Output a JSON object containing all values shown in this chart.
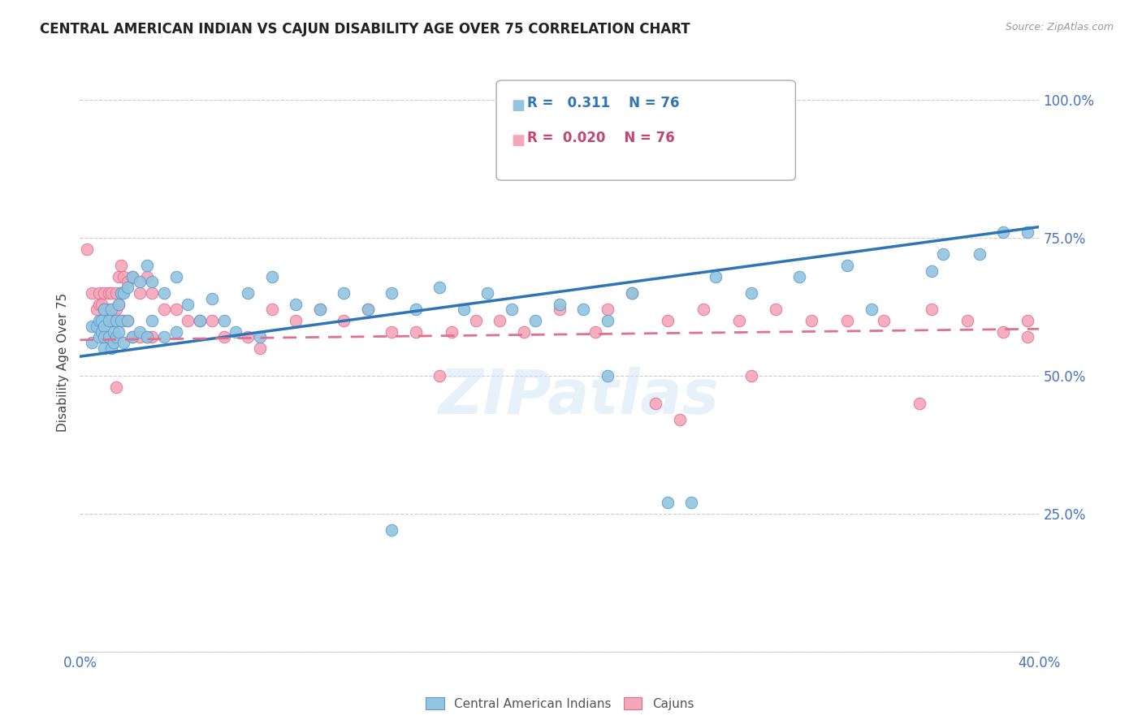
{
  "title": "CENTRAL AMERICAN INDIAN VS CAJUN DISABILITY AGE OVER 75 CORRELATION CHART",
  "source": "Source: ZipAtlas.com",
  "ylabel": "Disability Age Over 75",
  "R1": "0.311",
  "N1": "76",
  "R2": "0.020",
  "N2": "76",
  "color_blue": "#92c5de",
  "color_blue_edge": "#5b9bd5",
  "color_pink": "#f4a7b9",
  "color_pink_edge": "#e07090",
  "color_line_blue": "#2e75b6",
  "color_line_pink": "#e07090",
  "legend1_label": "Central American Indians",
  "legend2_label": "Cajuns",
  "watermark": "ZIPatlas",
  "xlim": [
    0.0,
    0.4
  ],
  "ylim": [
    0.0,
    1.05
  ],
  "ytick_values": [
    0.0,
    0.25,
    0.5,
    0.75,
    1.0
  ],
  "ytick_labels": [
    "",
    "25.0%",
    "50.0%",
    "75.0%",
    "100.0%"
  ],
  "blue_line_x0": 0.0,
  "blue_line_y0": 0.535,
  "blue_line_x1": 0.4,
  "blue_line_y1": 0.77,
  "pink_line_x0": 0.0,
  "pink_line_y0": 0.565,
  "pink_line_x1": 0.4,
  "pink_line_y1": 0.585,
  "blue_dots_x": [
    0.005,
    0.005,
    0.007,
    0.008,
    0.008,
    0.009,
    0.009,
    0.01,
    0.01,
    0.01,
    0.01,
    0.012,
    0.012,
    0.013,
    0.013,
    0.014,
    0.014,
    0.015,
    0.015,
    0.016,
    0.016,
    0.017,
    0.017,
    0.018,
    0.018,
    0.02,
    0.02,
    0.022,
    0.022,
    0.025,
    0.025,
    0.028,
    0.028,
    0.03,
    0.03,
    0.035,
    0.035,
    0.04,
    0.04,
    0.045,
    0.05,
    0.055,
    0.06,
    0.065,
    0.07,
    0.075,
    0.08,
    0.09,
    0.1,
    0.11,
    0.12,
    0.13,
    0.14,
    0.15,
    0.16,
    0.17,
    0.18,
    0.19,
    0.2,
    0.21,
    0.22,
    0.23,
    0.245,
    0.255,
    0.265,
    0.28,
    0.3,
    0.32,
    0.33,
    0.355,
    0.36,
    0.375,
    0.385,
    0.395,
    0.22,
    0.13
  ],
  "blue_dots_y": [
    0.56,
    0.59,
    0.59,
    0.6,
    0.57,
    0.6,
    0.58,
    0.62,
    0.59,
    0.57,
    0.55,
    0.6,
    0.57,
    0.62,
    0.55,
    0.58,
    0.56,
    0.6,
    0.57,
    0.63,
    0.58,
    0.65,
    0.6,
    0.65,
    0.56,
    0.66,
    0.6,
    0.68,
    0.57,
    0.67,
    0.58,
    0.7,
    0.57,
    0.67,
    0.6,
    0.65,
    0.57,
    0.68,
    0.58,
    0.63,
    0.6,
    0.64,
    0.6,
    0.58,
    0.65,
    0.57,
    0.68,
    0.63,
    0.62,
    0.65,
    0.62,
    0.65,
    0.62,
    0.66,
    0.62,
    0.65,
    0.62,
    0.6,
    0.63,
    0.62,
    0.6,
    0.65,
    0.27,
    0.27,
    0.68,
    0.65,
    0.68,
    0.7,
    0.62,
    0.69,
    0.72,
    0.72,
    0.76,
    0.76,
    0.5,
    0.22
  ],
  "pink_dots_x": [
    0.003,
    0.005,
    0.007,
    0.008,
    0.008,
    0.009,
    0.009,
    0.01,
    0.01,
    0.01,
    0.01,
    0.012,
    0.012,
    0.013,
    0.013,
    0.014,
    0.014,
    0.015,
    0.015,
    0.016,
    0.016,
    0.017,
    0.017,
    0.018,
    0.018,
    0.02,
    0.02,
    0.022,
    0.022,
    0.025,
    0.025,
    0.028,
    0.028,
    0.03,
    0.03,
    0.035,
    0.04,
    0.045,
    0.05,
    0.055,
    0.06,
    0.07,
    0.075,
    0.08,
    0.09,
    0.1,
    0.11,
    0.12,
    0.13,
    0.14,
    0.155,
    0.165,
    0.175,
    0.185,
    0.2,
    0.215,
    0.23,
    0.245,
    0.26,
    0.275,
    0.29,
    0.305,
    0.32,
    0.335,
    0.355,
    0.37,
    0.385,
    0.395,
    0.15,
    0.22,
    0.24,
    0.25,
    0.28,
    0.35,
    0.015,
    0.395
  ],
  "pink_dots_y": [
    0.73,
    0.65,
    0.62,
    0.65,
    0.63,
    0.63,
    0.6,
    0.65,
    0.62,
    0.6,
    0.57,
    0.65,
    0.62,
    0.65,
    0.57,
    0.62,
    0.6,
    0.65,
    0.62,
    0.68,
    0.63,
    0.7,
    0.65,
    0.68,
    0.6,
    0.67,
    0.6,
    0.68,
    0.57,
    0.65,
    0.57,
    0.68,
    0.57,
    0.65,
    0.57,
    0.62,
    0.62,
    0.6,
    0.6,
    0.6,
    0.57,
    0.57,
    0.55,
    0.62,
    0.6,
    0.62,
    0.6,
    0.62,
    0.58,
    0.58,
    0.58,
    0.6,
    0.6,
    0.58,
    0.62,
    0.58,
    0.65,
    0.6,
    0.62,
    0.6,
    0.62,
    0.6,
    0.6,
    0.6,
    0.62,
    0.6,
    0.58,
    0.6,
    0.5,
    0.62,
    0.45,
    0.42,
    0.5,
    0.45,
    0.48,
    0.57
  ]
}
